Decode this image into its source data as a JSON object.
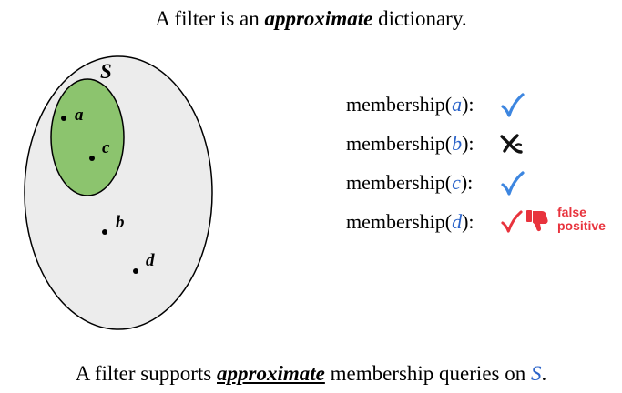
{
  "title": {
    "before": "A filter is an",
    "emphasis": "approximate",
    "after": "dictionary."
  },
  "diagram": {
    "set_label": "S",
    "points": [
      {
        "label": "a"
      },
      {
        "label": "c"
      },
      {
        "label": "b"
      },
      {
        "label": "d"
      }
    ],
    "colors": {
      "universe_fill": "#ececec",
      "set_fill": "#8cc46e",
      "check_blue": "#3d86e0",
      "false_positive_red": "#e8333d",
      "arg_blue": "#2a63c9"
    }
  },
  "queries": [
    {
      "prefix": "membership(",
      "arg": "a",
      "suffix": "):",
      "result": "check-icon"
    },
    {
      "prefix": "membership(",
      "arg": "b",
      "suffix": "):",
      "result": "cross-icon"
    },
    {
      "prefix": "membership(",
      "arg": "c",
      "suffix": "):",
      "result": "check-icon"
    },
    {
      "prefix": "membership(",
      "arg": "d",
      "suffix": "):",
      "result": "check-icon",
      "extra_icon": "thumbs-down-icon"
    }
  ],
  "false_positive": {
    "line1": "false",
    "line2": "positive"
  },
  "footer": {
    "before": "A filter supports",
    "emphasis": "approximate",
    "middle": "membership queries on",
    "set": "S",
    "after": "."
  }
}
